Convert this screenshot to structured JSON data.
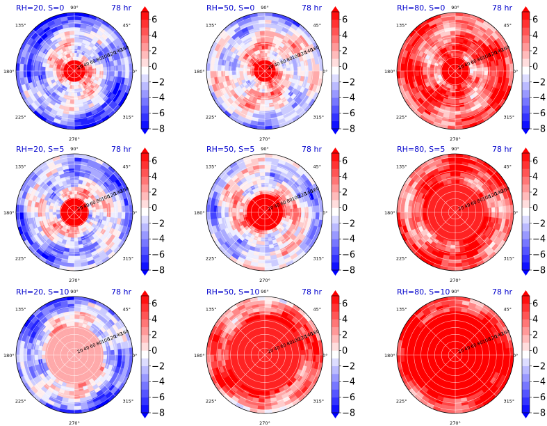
{
  "chart_data": {
    "type": "heatmap",
    "layout": {
      "rows": 3,
      "cols": 3
    },
    "time_label": "78 hr",
    "angle_labels": [
      "90°",
      "45°",
      "0°",
      "315°",
      "270°",
      "225°",
      "180°",
      "135°"
    ],
    "radial_ticks": [
      20,
      40,
      60,
      80,
      100,
      120,
      140,
      160
    ],
    "colorbar": {
      "ticks": [
        6,
        4,
        2,
        0,
        -2,
        -4,
        -6,
        -8
      ],
      "tick_labels": [
        "6",
        "4",
        "2",
        "0",
        "−2",
        "−4",
        "−6",
        "−8"
      ],
      "range": [
        -8,
        7
      ],
      "levels": [
        -8,
        -7,
        -6,
        -5,
        -4,
        -3,
        -2,
        -1,
        0,
        1,
        2,
        3,
        4,
        5,
        6,
        7
      ],
      "colormap": "bwr",
      "extend": "both",
      "low_color": "#0000ff",
      "high_color": "#ff0000"
    },
    "panels": [
      {
        "title": "RH=20, S=0",
        "time": "78 hr",
        "core_value": 7,
        "core_radius": 30,
        "far_value": -6,
        "ring_value": 2
      },
      {
        "title": "RH=50, S=0",
        "time": "78 hr",
        "core_value": 7,
        "core_radius": 30,
        "far_value": -2,
        "ring_value": 2
      },
      {
        "title": "RH=80, S=0",
        "time": "78 hr",
        "core_value": 7,
        "core_radius": 40,
        "far_value": 5,
        "ring_value": 4
      },
      {
        "title": "RH=20, S=5",
        "time": "78 hr",
        "core_value": 7,
        "core_radius": 40,
        "far_value": -4,
        "ring_value": 1
      },
      {
        "title": "RH=50, S=5",
        "time": "78 hr",
        "core_value": 7,
        "core_radius": 50,
        "far_value": -3,
        "ring_value": 2
      },
      {
        "title": "RH=80, S=5",
        "time": "78 hr",
        "core_value": 6,
        "core_radius": 90,
        "far_value": 4,
        "ring_value": 5
      },
      {
        "title": "RH=20, S=10",
        "time": "78 hr",
        "core_value": 2,
        "core_radius": 80,
        "far_value": -5,
        "ring_value": 1
      },
      {
        "title": "RH=50, S=10",
        "time": "78 hr",
        "core_value": 6,
        "core_radius": 110,
        "far_value": 3,
        "ring_value": 5
      },
      {
        "title": "RH=80, S=10",
        "time": "78 hr",
        "core_value": 7,
        "core_radius": 130,
        "far_value": 6,
        "ring_value": 6
      }
    ]
  },
  "colors": {
    "title": "#0000cc",
    "text": "#000000",
    "grid": "#ffffff"
  }
}
